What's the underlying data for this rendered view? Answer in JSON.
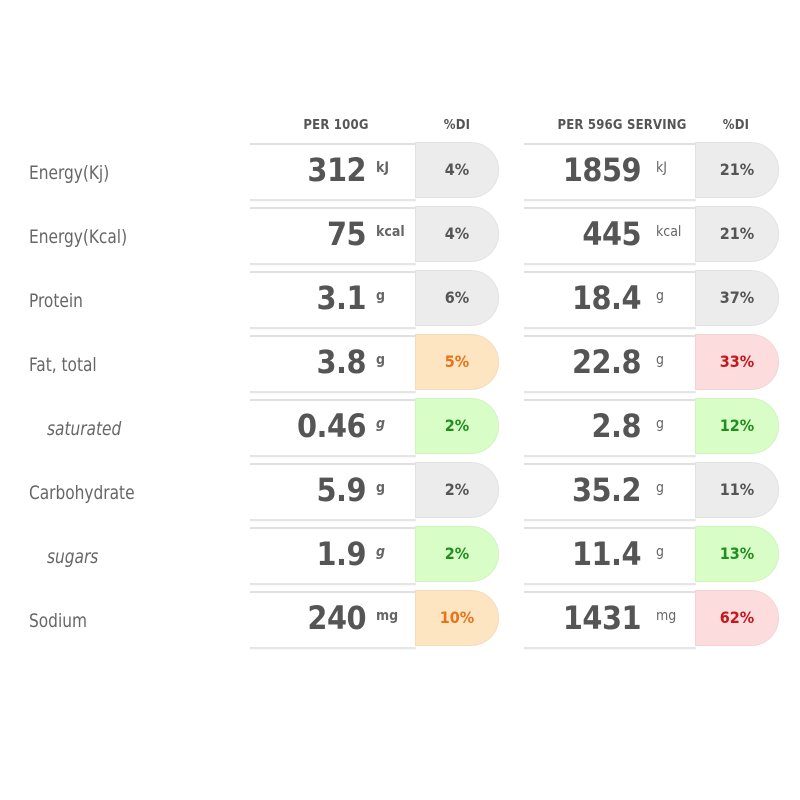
{
  "headers": {
    "per100": "PER 100G",
    "di1": "%DI",
    "perServing": "PER 596G SERVING",
    "di2": "%DI"
  },
  "colors": {
    "grey": "#ececec",
    "orange": "#fde5c2",
    "green": "#d9fdc7",
    "red": "#fcdcdc"
  },
  "rows": [
    {
      "label": "Energy(Kj)",
      "sub": false,
      "v1": "312",
      "u1": "kJ",
      "di1": "4%",
      "c1": "grey",
      "v2": "1859",
      "u2": "kJ",
      "di2": "21%",
      "c2": "grey"
    },
    {
      "label": "Energy(Kcal)",
      "sub": false,
      "v1": "75",
      "u1": "kcal",
      "di1": "4%",
      "c1": "grey",
      "v2": "445",
      "u2": "kcal",
      "di2": "21%",
      "c2": "grey"
    },
    {
      "label": "Protein",
      "sub": false,
      "v1": "3.1",
      "u1": "g",
      "di1": "6%",
      "c1": "grey",
      "v2": "18.4",
      "u2": "g",
      "di2": "37%",
      "c2": "grey"
    },
    {
      "label": "Fat, total",
      "sub": false,
      "v1": "3.8",
      "u1": "g",
      "di1": "5%",
      "c1": "orange",
      "v2": "22.8",
      "u2": "g",
      "di2": "33%",
      "c2": "red"
    },
    {
      "label": "saturated",
      "sub": true,
      "v1": "0.46",
      "u1": "g",
      "di1": "2%",
      "c1": "green",
      "v2": "2.8",
      "u2": "g",
      "di2": "12%",
      "c2": "green"
    },
    {
      "label": "Carbohydrate",
      "sub": false,
      "v1": "5.9",
      "u1": "g",
      "di1": "2%",
      "c1": "grey",
      "v2": "35.2",
      "u2": "g",
      "di2": "11%",
      "c2": "grey"
    },
    {
      "label": "sugars",
      "sub": true,
      "v1": "1.9",
      "u1": "g",
      "di1": "2%",
      "c1": "green",
      "v2": "11.4",
      "u2": "g",
      "di2": "13%",
      "c2": "green"
    },
    {
      "label": "Sodium",
      "sub": false,
      "v1": "240",
      "u1": "mg",
      "di1": "10%",
      "c1": "orange",
      "v2": "1431",
      "u2": "mg",
      "di2": "62%",
      "c2": "red"
    }
  ]
}
